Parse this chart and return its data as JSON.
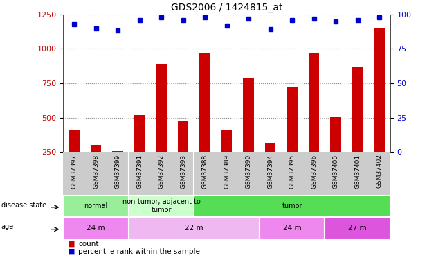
{
  "title": "GDS2006 / 1424815_at",
  "samples": [
    "GSM37397",
    "GSM37398",
    "GSM37399",
    "GSM37391",
    "GSM37392",
    "GSM37393",
    "GSM37388",
    "GSM37389",
    "GSM37390",
    "GSM37394",
    "GSM37395",
    "GSM37396",
    "GSM37400",
    "GSM37401",
    "GSM37402"
  ],
  "counts": [
    410,
    300,
    255,
    520,
    890,
    480,
    970,
    415,
    785,
    315,
    720,
    970,
    505,
    870,
    1150
  ],
  "percentile": [
    93,
    90,
    88,
    96,
    98,
    96,
    98,
    92,
    97,
    89,
    96,
    97,
    95,
    96,
    98
  ],
  "ylim_left": [
    250,
    1250
  ],
  "yticks_left": [
    250,
    500,
    750,
    1000,
    1250
  ],
  "ylim_right": [
    0,
    100
  ],
  "yticks_right": [
    0,
    25,
    50,
    75,
    100
  ],
  "bar_color": "#cc0000",
  "dot_color": "#0000cc",
  "bar_width": 0.5,
  "disease_state_groups": [
    {
      "label": "normal",
      "start": 0,
      "end": 3,
      "color": "#99ee99"
    },
    {
      "label": "non-tumor, adjacent to\ntumor",
      "start": 3,
      "end": 6,
      "color": "#ccffcc"
    },
    {
      "label": "tumor",
      "start": 6,
      "end": 15,
      "color": "#55dd55"
    }
  ],
  "age_groups": [
    {
      "label": "24 m",
      "start": 0,
      "end": 3,
      "color": "#ee88ee"
    },
    {
      "label": "22 m",
      "start": 3,
      "end": 9,
      "color": "#f0b8f0"
    },
    {
      "label": "24 m",
      "start": 9,
      "end": 12,
      "color": "#ee88ee"
    },
    {
      "label": "27 m",
      "start": 12,
      "end": 15,
      "color": "#dd55dd"
    }
  ],
  "legend_count_color": "#cc0000",
  "legend_pct_color": "#0000cc",
  "grid_color": "#888888",
  "bg_color": "#ffffff",
  "tick_label_color_left": "#cc0000",
  "tick_label_color_right": "#0000cc",
  "xlabels_bg": "#cccccc",
  "left_label_col": "#000000"
}
